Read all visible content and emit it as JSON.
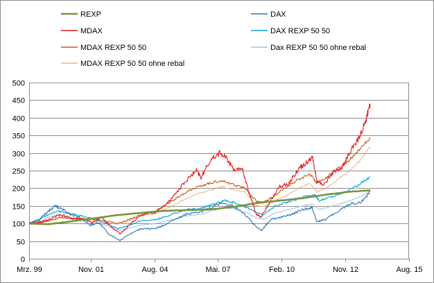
{
  "chart_data": {
    "type": "line",
    "title": "",
    "xlabel": "",
    "ylabel": "",
    "ylim": [
      0,
      500
    ],
    "yticks": [
      0,
      50,
      100,
      150,
      200,
      250,
      300,
      350,
      400,
      450,
      500
    ],
    "xlim": [
      1999.17,
      2015.58
    ],
    "xticks": [
      {
        "label": "Mrz. 99",
        "value": 1999.17
      },
      {
        "label": "Nov. 01",
        "value": 2001.83
      },
      {
        "label": "Aug. 04",
        "value": 2004.58
      },
      {
        "label": "Mai. 07",
        "value": 2007.33
      },
      {
        "label": "Feb. 10",
        "value": 2010.08
      },
      {
        "label": "Nov. 12",
        "value": 2012.83
      },
      {
        "label": "Aug. 15",
        "value": 2015.58
      }
    ],
    "grid": "horizontal",
    "legend_position": "top",
    "series": [
      {
        "name": "REXP",
        "color": "#77933c",
        "width": 2.6,
        "points": [
          [
            1999.17,
            100
          ],
          [
            2000.0,
            98
          ],
          [
            2001.0,
            106
          ],
          [
            2002.0,
            115
          ],
          [
            2003.0,
            124
          ],
          [
            2004.0,
            130
          ],
          [
            2005.0,
            136
          ],
          [
            2006.0,
            138
          ],
          [
            2007.0,
            140
          ],
          [
            2008.0,
            147
          ],
          [
            2009.0,
            158
          ],
          [
            2010.0,
            165
          ],
          [
            2011.0,
            172
          ],
          [
            2012.0,
            182
          ],
          [
            2013.0,
            190
          ],
          [
            2013.9,
            194
          ]
        ]
      },
      {
        "name": "MDAX",
        "color": "#e31a1c",
        "width": 1.1,
        "points": [
          [
            1999.17,
            100
          ],
          [
            1999.6,
            103
          ],
          [
            2000.0,
            110
          ],
          [
            2000.5,
            125
          ],
          [
            2001.0,
            115
          ],
          [
            2001.5,
            112
          ],
          [
            2001.9,
            102
          ],
          [
            2002.3,
            118
          ],
          [
            2002.7,
            92
          ],
          [
            2003.1,
            70
          ],
          [
            2003.5,
            96
          ],
          [
            2004.0,
            125
          ],
          [
            2004.6,
            130
          ],
          [
            2005.0,
            150
          ],
          [
            2005.5,
            185
          ],
          [
            2006.0,
            225
          ],
          [
            2006.4,
            250
          ],
          [
            2006.6,
            230
          ],
          [
            2007.0,
            280
          ],
          [
            2007.4,
            300
          ],
          [
            2007.7,
            285
          ],
          [
            2008.0,
            255
          ],
          [
            2008.4,
            250
          ],
          [
            2008.7,
            180
          ],
          [
            2009.0,
            125
          ],
          [
            2009.2,
            118
          ],
          [
            2009.6,
            165
          ],
          [
            2010.0,
            205
          ],
          [
            2010.4,
            215
          ],
          [
            2010.8,
            255
          ],
          [
            2011.1,
            270
          ],
          [
            2011.4,
            290
          ],
          [
            2011.6,
            220
          ],
          [
            2011.9,
            210
          ],
          [
            2012.3,
            245
          ],
          [
            2012.7,
            260
          ],
          [
            2013.0,
            300
          ],
          [
            2013.4,
            340
          ],
          [
            2013.7,
            390
          ],
          [
            2013.9,
            440
          ]
        ]
      },
      {
        "name": "DAX",
        "color": "#2e75b6",
        "width": 1.1,
        "points": [
          [
            1999.17,
            100
          ],
          [
            1999.6,
            110
          ],
          [
            2000.0,
            135
          ],
          [
            2000.3,
            150
          ],
          [
            2000.6,
            140
          ],
          [
            2001.0,
            125
          ],
          [
            2001.4,
            115
          ],
          [
            2001.8,
            95
          ],
          [
            2002.2,
            102
          ],
          [
            2002.6,
            70
          ],
          [
            2003.1,
            52
          ],
          [
            2003.5,
            70
          ],
          [
            2004.0,
            85
          ],
          [
            2004.6,
            85
          ],
          [
            2005.0,
            95
          ],
          [
            2005.6,
            115
          ],
          [
            2006.0,
            128
          ],
          [
            2006.5,
            130
          ],
          [
            2007.0,
            145
          ],
          [
            2007.5,
            160
          ],
          [
            2008.0,
            150
          ],
          [
            2008.5,
            125
          ],
          [
            2009.0,
            90
          ],
          [
            2009.2,
            80
          ],
          [
            2009.6,
            110
          ],
          [
            2010.0,
            118
          ],
          [
            2010.5,
            125
          ],
          [
            2011.0,
            140
          ],
          [
            2011.4,
            145
          ],
          [
            2011.6,
            105
          ],
          [
            2012.0,
            112
          ],
          [
            2012.5,
            135
          ],
          [
            2013.0,
            155
          ],
          [
            2013.5,
            160
          ],
          [
            2013.9,
            190
          ]
        ]
      },
      {
        "name": "DAX REXP 50 50",
        "color": "#00a0e0",
        "width": 1.1,
        "points": [
          [
            1999.17,
            100
          ],
          [
            1999.6,
            112
          ],
          [
            2000.0,
            125
          ],
          [
            2000.4,
            135
          ],
          [
            2000.8,
            130
          ],
          [
            2001.2,
            125
          ],
          [
            2001.6,
            118
          ],
          [
            2002.0,
            112
          ],
          [
            2002.5,
            100
          ],
          [
            2003.0,
            85
          ],
          [
            2003.5,
            95
          ],
          [
            2004.0,
            108
          ],
          [
            2004.6,
            110
          ],
          [
            2005.0,
            118
          ],
          [
            2005.6,
            132
          ],
          [
            2006.0,
            140
          ],
          [
            2006.6,
            143
          ],
          [
            2007.0,
            152
          ],
          [
            2007.6,
            165
          ],
          [
            2008.0,
            160
          ],
          [
            2008.6,
            145
          ],
          [
            2009.0,
            130
          ],
          [
            2009.3,
            125
          ],
          [
            2009.8,
            150
          ],
          [
            2010.3,
            160
          ],
          [
            2011.0,
            175
          ],
          [
            2011.5,
            182
          ],
          [
            2011.7,
            165
          ],
          [
            2012.2,
            175
          ],
          [
            2012.8,
            190
          ],
          [
            2013.3,
            205
          ],
          [
            2013.9,
            232
          ]
        ]
      },
      {
        "name": "MDAX REXP 50 50",
        "color": "#c55a11",
        "width": 1.1,
        "points": [
          [
            1999.17,
            100
          ],
          [
            1999.6,
            102
          ],
          [
            2000.0,
            108
          ],
          [
            2000.5,
            118
          ],
          [
            2001.0,
            115
          ],
          [
            2001.5,
            114
          ],
          [
            2002.0,
            112
          ],
          [
            2002.5,
            108
          ],
          [
            2003.0,
            100
          ],
          [
            2003.5,
            112
          ],
          [
            2004.0,
            125
          ],
          [
            2004.6,
            135
          ],
          [
            2005.0,
            150
          ],
          [
            2005.5,
            170
          ],
          [
            2006.0,
            190
          ],
          [
            2006.5,
            205
          ],
          [
            2007.0,
            215
          ],
          [
            2007.5,
            222
          ],
          [
            2008.0,
            210
          ],
          [
            2008.5,
            200
          ],
          [
            2009.0,
            162
          ],
          [
            2009.3,
            160
          ],
          [
            2009.8,
            180
          ],
          [
            2010.3,
            205
          ],
          [
            2010.8,
            225
          ],
          [
            2011.3,
            240
          ],
          [
            2011.6,
            215
          ],
          [
            2012.0,
            230
          ],
          [
            2012.5,
            255
          ],
          [
            2013.0,
            280
          ],
          [
            2013.4,
            305
          ],
          [
            2013.9,
            345
          ]
        ]
      },
      {
        "name": "Dax REXP 50 50 ohne rebal",
        "color": "#9dc3e6",
        "width": 1.0,
        "points": [
          [
            1999.17,
            100
          ],
          [
            1999.6,
            105
          ],
          [
            2000.0,
            118
          ],
          [
            2000.4,
            125
          ],
          [
            2000.8,
            118
          ],
          [
            2001.3,
            112
          ],
          [
            2001.8,
            105
          ],
          [
            2002.3,
            100
          ],
          [
            2002.7,
            88
          ],
          [
            2003.1,
            80
          ],
          [
            2003.5,
            88
          ],
          [
            2004.0,
            95
          ],
          [
            2004.6,
            100
          ],
          [
            2005.0,
            105
          ],
          [
            2005.6,
            115
          ],
          [
            2006.0,
            122
          ],
          [
            2006.6,
            126
          ],
          [
            2007.0,
            135
          ],
          [
            2007.6,
            145
          ],
          [
            2008.0,
            142
          ],
          [
            2008.6,
            130
          ],
          [
            2009.0,
            115
          ],
          [
            2009.3,
            112
          ],
          [
            2009.8,
            130
          ],
          [
            2010.3,
            138
          ],
          [
            2011.0,
            150
          ],
          [
            2011.4,
            155
          ],
          [
            2011.7,
            140
          ],
          [
            2012.2,
            148
          ],
          [
            2012.8,
            160
          ],
          [
            2013.3,
            170
          ],
          [
            2013.9,
            192
          ]
        ]
      },
      {
        "name": "MDAX REXP 50 50 ohne rebal",
        "color": "#f4b183",
        "width": 1.0,
        "points": [
          [
            1999.17,
            100
          ],
          [
            1999.6,
            101
          ],
          [
            2000.0,
            106
          ],
          [
            2000.5,
            115
          ],
          [
            2001.0,
            112
          ],
          [
            2001.5,
            110
          ],
          [
            2002.0,
            108
          ],
          [
            2002.5,
            103
          ],
          [
            2003.0,
            98
          ],
          [
            2003.5,
            108
          ],
          [
            2004.0,
            122
          ],
          [
            2004.6,
            128
          ],
          [
            2005.0,
            140
          ],
          [
            2005.5,
            155
          ],
          [
            2006.0,
            172
          ],
          [
            2006.5,
            185
          ],
          [
            2007.0,
            195
          ],
          [
            2007.5,
            205
          ],
          [
            2008.0,
            195
          ],
          [
            2008.5,
            190
          ],
          [
            2009.0,
            150
          ],
          [
            2009.3,
            148
          ],
          [
            2009.8,
            165
          ],
          [
            2010.3,
            180
          ],
          [
            2010.8,
            200
          ],
          [
            2011.3,
            215
          ],
          [
            2011.6,
            190
          ],
          [
            2012.0,
            200
          ],
          [
            2012.5,
            225
          ],
          [
            2013.0,
            250
          ],
          [
            2013.4,
            275
          ],
          [
            2013.9,
            318
          ]
        ]
      }
    ],
    "legend": [
      {
        "label": "REXP",
        "series": "REXP"
      },
      {
        "label": "DAX",
        "series": "DAX"
      },
      {
        "label": "MDAX",
        "series": "MDAX"
      },
      {
        "label": "DAX REXP 50 50",
        "series": "DAX REXP 50 50"
      },
      {
        "label": "MDAX REXP 50 50",
        "series": "MDAX REXP 50 50"
      },
      {
        "label": "Dax REXP 50 50 ohne rebal",
        "series": "Dax REXP 50 50 ohne rebal"
      },
      {
        "label": "MDAX REXP 50 50 ohne rebal",
        "series": "MDAX REXP 50 50 ohne rebal"
      }
    ]
  }
}
